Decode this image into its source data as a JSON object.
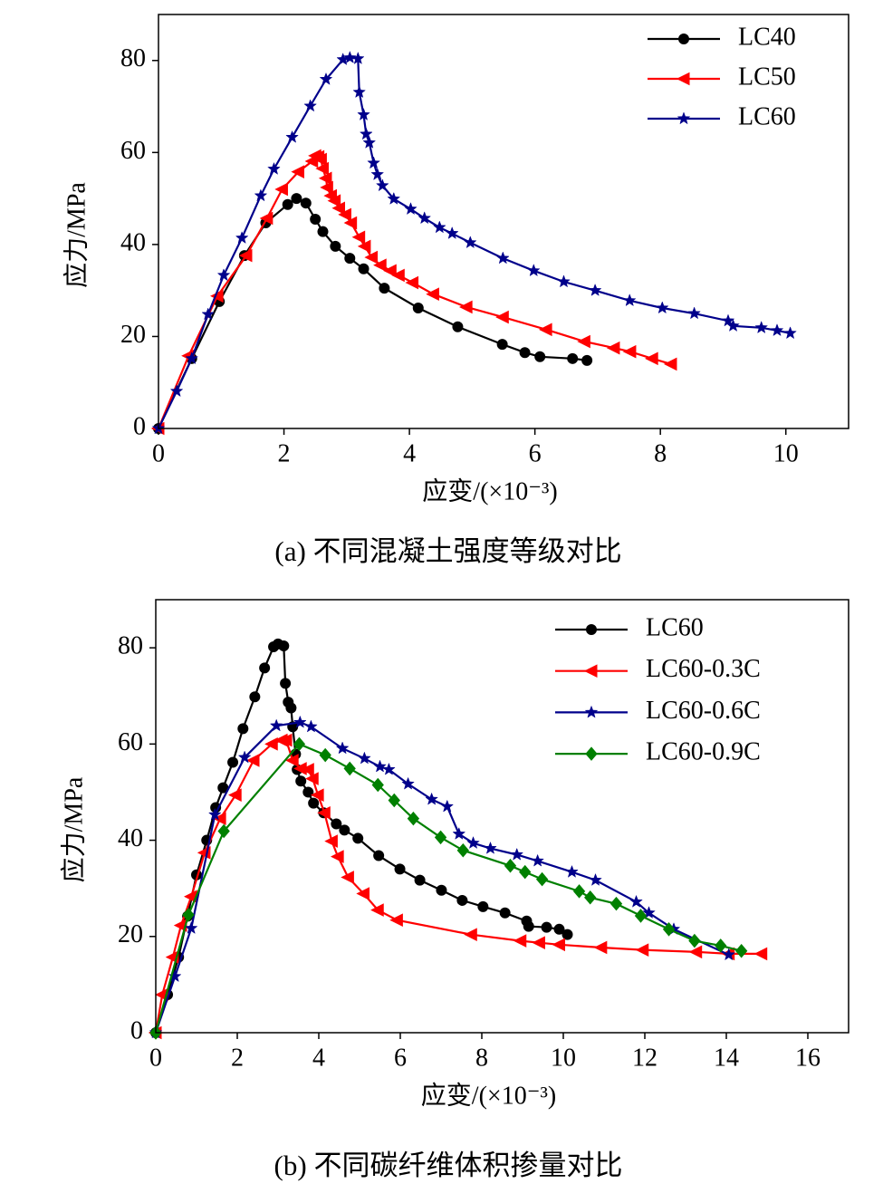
{
  "chart_data": [
    {
      "type": "line",
      "caption": "(a)  不同混凝土强度等级对比",
      "xlabel": "应变/(×10⁻³)",
      "ylabel": "应力/MPa",
      "xlim": [
        0,
        11
      ],
      "xticks": [
        0,
        2,
        4,
        6,
        8,
        10
      ],
      "ylim": [
        0,
        90
      ],
      "yticks": [
        0,
        20,
        40,
        60,
        80
      ],
      "legend": "upper right",
      "series": [
        {
          "name": "LC40",
          "color": "#000000",
          "marker": "circle",
          "x": [
            0,
            0.53,
            0.97,
            1.37,
            1.71,
            2.06,
            2.2,
            2.35,
            2.5,
            2.62,
            2.82,
            3.05,
            3.27,
            3.6,
            4.14,
            4.77,
            5.48,
            5.84,
            6.08,
            6.6,
            6.83
          ],
          "values": [
            0,
            15.2,
            27.6,
            37.6,
            44.7,
            48.7,
            50,
            49,
            45.5,
            42.8,
            39.6,
            37,
            34.7,
            30.5,
            26.2,
            22.1,
            18.3,
            16.5,
            15.6,
            15.2,
            14.8
          ]
        },
        {
          "name": "LC50",
          "color": "#ff0000",
          "marker": "triangle-left",
          "x": [
            0,
            0.48,
            0.94,
            1.4,
            1.73,
            1.97,
            2.23,
            2.45,
            2.5,
            2.55,
            2.59,
            2.62,
            2.67,
            2.69,
            2.75,
            2.81,
            2.88,
            2.98,
            3.07,
            3.2,
            3.29,
            3.4,
            3.54,
            3.7,
            3.83,
            4.05,
            4.38,
            4.91,
            5.49,
            6.18,
            6.79,
            7.26,
            7.52,
            7.87,
            8.17
          ],
          "values": [
            0,
            15.8,
            28.8,
            37.6,
            45.7,
            52,
            55.8,
            58.1,
            59.3,
            59.1,
            58.5,
            56.5,
            54.4,
            52.4,
            50.6,
            49.5,
            47.9,
            46.5,
            44.7,
            41.6,
            39.6,
            37.2,
            35.5,
            34.3,
            33.3,
            31.7,
            29.2,
            26.4,
            24.2,
            21.5,
            18.9,
            17.5,
            16.7,
            15.2,
            14
          ]
        },
        {
          "name": "LC60",
          "color": "#00008b",
          "marker": "star",
          "x": [
            0,
            0.29,
            0.53,
            0.79,
            1.04,
            1.33,
            1.63,
            1.84,
            2.13,
            2.42,
            2.67,
            2.94,
            3.05,
            3.18,
            3.2,
            3.27,
            3.31,
            3.36,
            3.43,
            3.49,
            3.57,
            3.75,
            4.02,
            4.24,
            4.48,
            4.68,
            4.97,
            5.49,
            5.98,
            6.46,
            6.96,
            7.51,
            8.03,
            8.54,
            9.08,
            9.16,
            9.61,
            9.86,
            10.07
          ],
          "values": [
            0,
            8.1,
            15.2,
            24.8,
            33.3,
            41.4,
            50.6,
            56.4,
            63.3,
            70.1,
            75.9,
            80.2,
            80.6,
            80.4,
            73.1,
            68.2,
            64,
            62.1,
            57.7,
            55.2,
            52.8,
            49.9,
            47.7,
            45.7,
            43.7,
            42.4,
            40.4,
            37,
            34.3,
            31.9,
            30,
            27.8,
            26.2,
            25,
            23.4,
            22.3,
            21.9,
            21.3,
            20.7
          ]
        }
      ]
    },
    {
      "type": "line",
      "caption": "(b)  不同碳纤维体积掺量对比",
      "xlabel": "应变/(×10⁻³)",
      "ylabel": "应力/MPa",
      "xlim": [
        0,
        17
      ],
      "xticks": [
        0,
        2,
        4,
        6,
        8,
        10,
        12,
        14,
        16
      ],
      "ylim": [
        0,
        90
      ],
      "yticks": [
        0,
        20,
        40,
        60,
        80
      ],
      "legend": "upper right",
      "series": [
        {
          "name": "LC60",
          "color": "#000000",
          "marker": "circle",
          "x": [
            0,
            0.29,
            0.56,
            0.78,
            1,
            1.25,
            1.47,
            1.65,
            1.89,
            2.14,
            2.43,
            2.67,
            2.89,
            3,
            3.14,
            3.18,
            3.25,
            3.32,
            3.36,
            3.43,
            3.47,
            3.56,
            3.74,
            3.87,
            4.12,
            4.43,
            4.63,
            4.96,
            5.47,
            5.99,
            6.48,
            7.01,
            7.52,
            8.03,
            8.57,
            9.1,
            9.15,
            9.59,
            9.9,
            10.1
          ],
          "values": [
            0,
            7.9,
            15.7,
            24.2,
            32.8,
            40,
            46.8,
            50.9,
            56.2,
            63.2,
            69.8,
            75.8,
            80.2,
            80.8,
            80.4,
            72.6,
            68.7,
            67.5,
            63.6,
            57.9,
            54.7,
            52.3,
            50,
            47.7,
            45.7,
            43.4,
            42.1,
            40.4,
            36.8,
            34,
            31.7,
            29.6,
            27.5,
            26.2,
            24.9,
            23.2,
            22.1,
            21.9,
            21.5,
            20.4
          ]
        },
        {
          "name": "LC60-0.3C",
          "color": "#ff0000",
          "marker": "triangle-left",
          "x": [
            0,
            0.16,
            0.42,
            0.62,
            0.87,
            1.2,
            1.58,
            1.96,
            2.4,
            2.85,
            3.09,
            3.2,
            3.36,
            3.56,
            3.74,
            3.85,
            3.98,
            4.14,
            4.32,
            4.47,
            4.72,
            5.1,
            5.45,
            5.92,
            7.74,
            8.95,
            9.41,
            9.9,
            10.93,
            11.95,
            13.26,
            14.06,
            14.86
          ],
          "values": [
            0,
            7.9,
            15.7,
            22.3,
            28.3,
            37.4,
            44.5,
            49.4,
            56.6,
            60,
            60.8,
            60.8,
            56.6,
            54.9,
            54.7,
            52.8,
            49.4,
            45.7,
            39.8,
            36.6,
            32.3,
            28.9,
            25.5,
            23.4,
            20.4,
            19.1,
            18.7,
            18.3,
            17.7,
            17.2,
            16.8,
            16.4,
            16.4
          ]
        },
        {
          "name": "LC60-0.6C",
          "color": "#00008b",
          "marker": "star",
          "x": [
            0,
            0.47,
            0.87,
            1.45,
            2.18,
            2.96,
            3.54,
            3.81,
            4.58,
            5.12,
            5.5,
            5.72,
            6.19,
            6.77,
            7.15,
            7.44,
            7.79,
            8.21,
            8.86,
            9.37,
            10.21,
            10.79,
            11.79,
            12.1,
            12.71,
            14.06
          ],
          "values": [
            0,
            11.7,
            21.7,
            45.3,
            57.2,
            63.8,
            64.5,
            63.6,
            59.1,
            57,
            55.3,
            54.7,
            51.7,
            48.5,
            47,
            41.3,
            39.4,
            38.3,
            37,
            35.7,
            33.4,
            31.7,
            27.2,
            24.9,
            21.5,
            16.2
          ]
        },
        {
          "name": "LC60-0.9C",
          "color": "#008000",
          "marker": "diamond",
          "x": [
            0,
            0.8,
            1.67,
            3.52,
            4.16,
            4.76,
            5.45,
            5.85,
            6.32,
            6.99,
            7.54,
            8.7,
            9.06,
            9.48,
            10.39,
            10.66,
            11.3,
            11.9,
            12.59,
            13.22,
            13.86,
            14.37
          ],
          "values": [
            0,
            24.5,
            41.9,
            60,
            57.7,
            54.9,
            51.5,
            48.3,
            44.5,
            40.6,
            37.9,
            34.7,
            33.4,
            31.9,
            29.4,
            28.1,
            26.8,
            24.3,
            21.5,
            19.1,
            18.1,
            17
          ]
        }
      ]
    }
  ]
}
